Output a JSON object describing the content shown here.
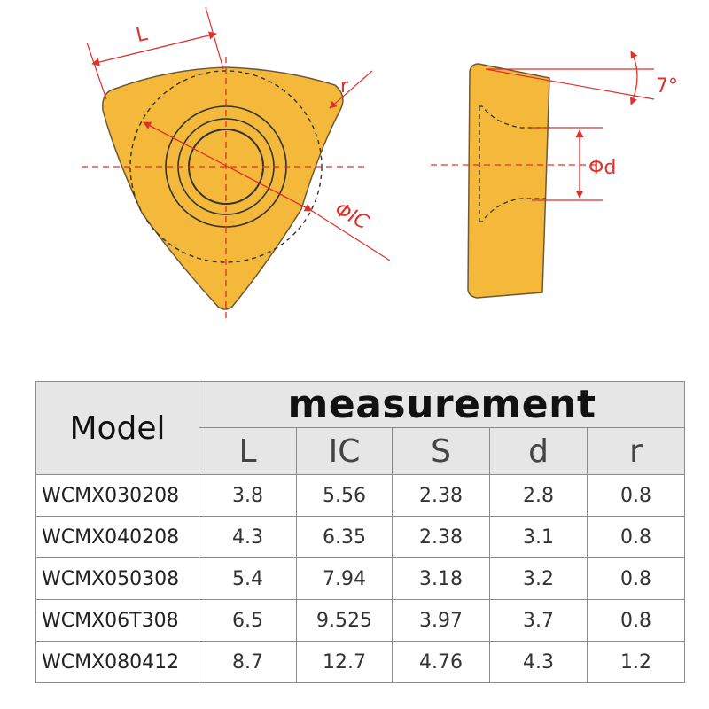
{
  "drawing": {
    "labels": {
      "L": "L",
      "r": "r",
      "ic": "ΦIC",
      "angle": "7°",
      "d": "Φd"
    },
    "colors": {
      "insert_fill": "#f4b83a",
      "insert_edge": "#6b5a3a",
      "dimension": "#e0302a"
    }
  },
  "table": {
    "model_header": "Model",
    "group_header": "measurement",
    "columns": [
      "L",
      "IC",
      "S",
      "d",
      "r"
    ],
    "rows": [
      {
        "model": "WCMX030208",
        "values": [
          "3.8",
          "5.56",
          "2.38",
          "2.8",
          "0.8"
        ]
      },
      {
        "model": "WCMX040208",
        "values": [
          "4.3",
          "6.35",
          "2.38",
          "3.1",
          "0.8"
        ]
      },
      {
        "model": "WCMX050308",
        "values": [
          "5.4",
          "7.94",
          "3.18",
          "3.2",
          "0.8"
        ]
      },
      {
        "model": "WCMX06T308",
        "values": [
          "6.5",
          "9.525",
          "3.97",
          "3.7",
          "0.8"
        ]
      },
      {
        "model": "WCMX080412",
        "values": [
          "8.7",
          "12.7",
          "4.76",
          "4.3",
          "1.2"
        ]
      }
    ]
  }
}
